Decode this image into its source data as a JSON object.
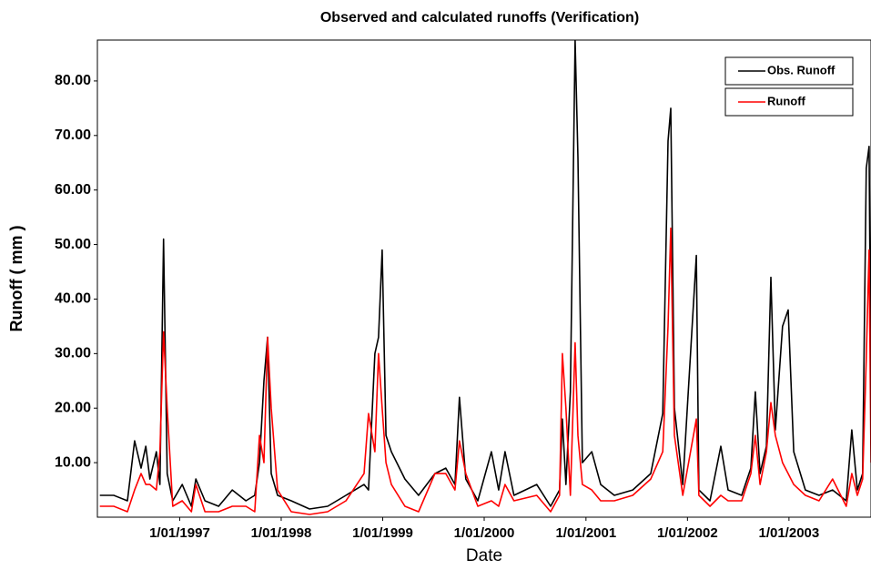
{
  "chart_data": {
    "type": "line",
    "title": "Observed and calculated runoffs (Verification)",
    "x_label": "Date",
    "y_label": "Runoff ( mm )",
    "legend": "top-right",
    "x": [
      "20/03/1996",
      "9/05/1996",
      "27/06/1996",
      "23/07/1996",
      "15/08/1996",
      "1/09/1996",
      "16/09/1996",
      "9/10/1996",
      "22/10/1996",
      "4/11/1996",
      "17/11/1996",
      "7/12/1996",
      "10/01/1997",
      "12/02/1997",
      "28/02/1997",
      "2/04/1997",
      "21/05/1997",
      "9/07/1997",
      "27/08/1997",
      "28/09/1997",
      "15/10/1997",
      "31/10/1997",
      "13/11/1997",
      "26/11/1997",
      "19/12/1997",
      "6/02/1998",
      "13/04/1998",
      "17/06/1998",
      "22/08/1998",
      "26/10/1998",
      "11/11/1998",
      "4/12/1998",
      "17/12/1998",
      "30/12/1998",
      "13/01/1999",
      "1/02/1999",
      "22/03/1999",
      "10/05/1999",
      "8/07/1999",
      "16/08/1999",
      "18/09/1999",
      "4/10/1999",
      "27/10/1999",
      "9/12/1999",
      "27/01/2000",
      "22/02/2000",
      "16/03/2000",
      "17/04/2000",
      "8/07/2000",
      "27/08/2000",
      "28/09/2000",
      "8/10/2000",
      "21/10/2000",
      "6/11/2000",
      "23/11/2000",
      "3/12/2000",
      "19/12/2000",
      "22/01/2001",
      "23/02/2001",
      "13/04/2001",
      "18/06/2001",
      "22/08/2001",
      "4/10/2001",
      "23/10/2001",
      "2/11/2001",
      "15/11/2001",
      "15/12/2001",
      "2/02/2002",
      "11/02/2002",
      "23/03/2002",
      "1/05/2002",
      "27/05/2002",
      "15/07/2002",
      "17/08/2002",
      "2/09/2002",
      "19/09/2002",
      "12/10/2002",
      "28/10/2002",
      "13/11/2002",
      "9/12/2002",
      "29/12/2002",
      "18/01/2003",
      "1/03/2003",
      "19/04/2003",
      "7/06/2003",
      "26/07/2003",
      "15/08/2003",
      "4/09/2003",
      "23/09/2003",
      "6/10/2003",
      "16/10/2003",
      "23/10/2003"
    ],
    "series": [
      {
        "name": "Obs. Runoff",
        "color": "#000000",
        "values": [
          4,
          4,
          3,
          14,
          9,
          13,
          7,
          12,
          6,
          51,
          8,
          3,
          6,
          2,
          7,
          3,
          2,
          5,
          3,
          4,
          10,
          25,
          33,
          8,
          4,
          3,
          1.5,
          2,
          4,
          6,
          5,
          30,
          33,
          49,
          15,
          12,
          7,
          4,
          8,
          9,
          6,
          22,
          7,
          3,
          12,
          5,
          12,
          4,
          6,
          2,
          5,
          18,
          6,
          23,
          87.5,
          66,
          10,
          12,
          6,
          4,
          5,
          8,
          19,
          69,
          75,
          20,
          6,
          48,
          5,
          3,
          13,
          5,
          4,
          9,
          23,
          8,
          13,
          44,
          16,
          35,
          38,
          12,
          5,
          4,
          5,
          3,
          16,
          5,
          8,
          64,
          68,
          20
        ]
      },
      {
        "name": "Runoff",
        "color": "#ff0000",
        "values": [
          2,
          2,
          1,
          5,
          8,
          6,
          6,
          5,
          12,
          34,
          20,
          2,
          3,
          1,
          6,
          1,
          1,
          2,
          2,
          1,
          15,
          10,
          33,
          20,
          5,
          1,
          0.5,
          1,
          3,
          8,
          19,
          12,
          30,
          20,
          10,
          6,
          2,
          1,
          8,
          8,
          5,
          14,
          8,
          2,
          3,
          2,
          6,
          3,
          4,
          1,
          4,
          30,
          20,
          4,
          32,
          15,
          6,
          5,
          3,
          3,
          4,
          7,
          12,
          35,
          53,
          15,
          4,
          18,
          4,
          2,
          4,
          3,
          3,
          8,
          15,
          6,
          12,
          21,
          15,
          10,
          8,
          6,
          4,
          3,
          7,
          2,
          8,
          4,
          7,
          29,
          49,
          10
        ]
      }
    ],
    "xlim": [
      "11/03/1996",
      "23/10/2003"
    ],
    "xticks": [
      "1/01/1997",
      "1/01/1998",
      "1/01/1999",
      "1/01/2000",
      "1/01/2001",
      "1/01/2002",
      "1/01/2003"
    ],
    "ylim": [
      0,
      87.5
    ],
    "yticks": [
      {
        "value": 10,
        "label": "10.00"
      },
      {
        "value": 20,
        "label": "20.00"
      },
      {
        "value": 30,
        "label": "30.00"
      },
      {
        "value": 40,
        "label": "40.00"
      },
      {
        "value": 50,
        "label": "50.00"
      },
      {
        "value": 60,
        "label": "60.00"
      },
      {
        "value": 70,
        "label": "70.00"
      },
      {
        "value": 80,
        "label": "80.00"
      }
    ]
  }
}
